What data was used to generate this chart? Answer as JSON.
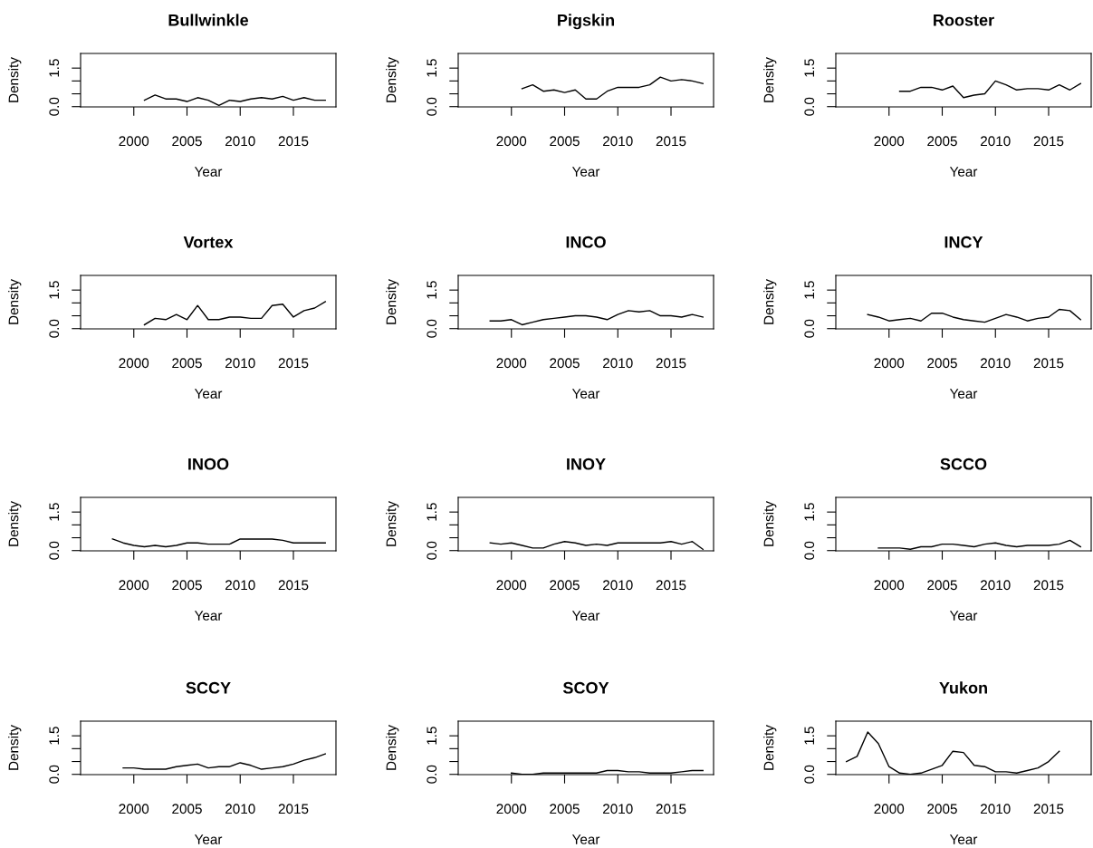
{
  "chart_data": [
    {
      "type": "line",
      "title": "Bullwinkle",
      "xlabel": "Year",
      "ylabel": "Density",
      "color": "#000000",
      "xlim": [
        1995,
        2019
      ],
      "ylim": [
        -0.01,
        2.07
      ],
      "xticks": [
        2000,
        2005,
        2010,
        2015
      ],
      "yticks": [
        {
          "value": 0,
          "label": "0.0"
        },
        {
          "value": 0.5,
          "label": null
        },
        {
          "value": 1,
          "label": null
        },
        {
          "value": 1.5,
          "label": "1.5"
        }
      ],
      "x": [
        2001,
        2002,
        2003,
        2004,
        2005,
        2006,
        2007,
        2008,
        2009,
        2010,
        2011,
        2012,
        2013,
        2014,
        2015,
        2016,
        2017,
        2018
      ],
      "values": [
        0.25,
        0.45,
        0.3,
        0.3,
        0.2,
        0.35,
        0.25,
        0.05,
        0.25,
        0.2,
        0.3,
        0.35,
        0.3,
        0.4,
        0.25,
        0.35,
        0.25,
        0.25
      ]
    },
    {
      "type": "line",
      "title": "Pigskin",
      "xlabel": "Year",
      "ylabel": "Density",
      "color": "#000000",
      "xlim": [
        1995,
        2019
      ],
      "ylim": [
        -0.01,
        2.07
      ],
      "xticks": [
        2000,
        2005,
        2010,
        2015
      ],
      "yticks": [
        {
          "value": 0,
          "label": "0.0"
        },
        {
          "value": 0.5,
          "label": null
        },
        {
          "value": 1,
          "label": null
        },
        {
          "value": 1.5,
          "label": "1.5"
        }
      ],
      "x": [
        2001,
        2002,
        2003,
        2004,
        2005,
        2006,
        2007,
        2008,
        2009,
        2010,
        2011,
        2012,
        2013,
        2014,
        2015,
        2016,
        2017,
        2018
      ],
      "values": [
        0.7,
        0.85,
        0.6,
        0.65,
        0.55,
        0.65,
        0.3,
        0.3,
        0.6,
        0.75,
        0.75,
        0.75,
        0.85,
        1.15,
        1.0,
        1.05,
        1.0,
        0.9
      ]
    },
    {
      "type": "line",
      "title": "Rooster",
      "xlabel": "Year",
      "ylabel": "Density",
      "color": "#000000",
      "xlim": [
        1995,
        2019
      ],
      "ylim": [
        -0.01,
        2.07
      ],
      "xticks": [
        2000,
        2005,
        2010,
        2015
      ],
      "yticks": [
        {
          "value": 0,
          "label": "0.0"
        },
        {
          "value": 0.5,
          "label": null
        },
        {
          "value": 1,
          "label": null
        },
        {
          "value": 1.5,
          "label": "1.5"
        }
      ],
      "x": [
        2001,
        2002,
        2003,
        2004,
        2005,
        2006,
        2007,
        2008,
        2009,
        2010,
        2011,
        2012,
        2013,
        2014,
        2015,
        2016,
        2017,
        2018
      ],
      "values": [
        0.6,
        0.6,
        0.75,
        0.75,
        0.65,
        0.8,
        0.35,
        0.45,
        0.5,
        1.0,
        0.85,
        0.65,
        0.7,
        0.7,
        0.65,
        0.85,
        0.65,
        0.9
      ]
    },
    {
      "type": "line",
      "title": "Vortex",
      "xlabel": "Year",
      "ylabel": "Density",
      "color": "#000000",
      "xlim": [
        1995,
        2019
      ],
      "ylim": [
        -0.01,
        2.07
      ],
      "xticks": [
        2000,
        2005,
        2010,
        2015
      ],
      "yticks": [
        {
          "value": 0,
          "label": "0.0"
        },
        {
          "value": 0.5,
          "label": null
        },
        {
          "value": 1,
          "label": null
        },
        {
          "value": 1.5,
          "label": "1.5"
        }
      ],
      "x": [
        2001,
        2002,
        2003,
        2004,
        2005,
        2006,
        2007,
        2008,
        2009,
        2010,
        2011,
        2012,
        2013,
        2014,
        2015,
        2016,
        2017,
        2018
      ],
      "values": [
        0.15,
        0.4,
        0.35,
        0.55,
        0.35,
        0.9,
        0.35,
        0.35,
        0.45,
        0.45,
        0.4,
        0.4,
        0.9,
        0.95,
        0.45,
        0.7,
        0.8,
        1.05
      ]
    },
    {
      "type": "line",
      "title": "INCO",
      "xlabel": "Year",
      "ylabel": "Density",
      "color": "#000000",
      "xlim": [
        1995,
        2019
      ],
      "ylim": [
        -0.01,
        2.07
      ],
      "xticks": [
        2000,
        2005,
        2010,
        2015
      ],
      "yticks": [
        {
          "value": 0,
          "label": "0.0"
        },
        {
          "value": 0.5,
          "label": null
        },
        {
          "value": 1,
          "label": null
        },
        {
          "value": 1.5,
          "label": "1.5"
        }
      ],
      "x": [
        1998,
        1999,
        2000,
        2001,
        2002,
        2003,
        2004,
        2005,
        2006,
        2007,
        2008,
        2009,
        2010,
        2011,
        2012,
        2013,
        2014,
        2015,
        2016,
        2017,
        2018
      ],
      "values": [
        0.3,
        0.3,
        0.35,
        0.15,
        0.25,
        0.35,
        0.4,
        0.45,
        0.5,
        0.5,
        0.45,
        0.35,
        0.55,
        0.7,
        0.65,
        0.7,
        0.5,
        0.5,
        0.45,
        0.55,
        0.45
      ]
    },
    {
      "type": "line",
      "title": "INCY",
      "xlabel": "Year",
      "ylabel": "Density",
      "color": "#000000",
      "xlim": [
        1995,
        2019
      ],
      "ylim": [
        -0.01,
        2.07
      ],
      "xticks": [
        2000,
        2005,
        2010,
        2015
      ],
      "yticks": [
        {
          "value": 0,
          "label": "0.0"
        },
        {
          "value": 0.5,
          "label": null
        },
        {
          "value": 1,
          "label": null
        },
        {
          "value": 1.5,
          "label": "1.5"
        }
      ],
      "x": [
        1998,
        1999,
        2000,
        2001,
        2002,
        2003,
        2004,
        2005,
        2006,
        2007,
        2008,
        2009,
        2010,
        2011,
        2012,
        2013,
        2014,
        2015,
        2016,
        2017,
        2018
      ],
      "values": [
        0.55,
        0.45,
        0.3,
        0.35,
        0.4,
        0.3,
        0.6,
        0.6,
        0.45,
        0.35,
        0.3,
        0.25,
        0.4,
        0.55,
        0.45,
        0.3,
        0.4,
        0.45,
        0.75,
        0.7,
        0.35
      ]
    },
    {
      "type": "line",
      "title": "INOO",
      "xlabel": "Year",
      "ylabel": "Density",
      "color": "#000000",
      "xlim": [
        1995,
        2019
      ],
      "ylim": [
        -0.01,
        2.07
      ],
      "xticks": [
        2000,
        2005,
        2010,
        2015
      ],
      "yticks": [
        {
          "value": 0,
          "label": "0.0"
        },
        {
          "value": 0.5,
          "label": null
        },
        {
          "value": 1,
          "label": null
        },
        {
          "value": 1.5,
          "label": "1.5"
        }
      ],
      "x": [
        1998,
        1999,
        2000,
        2001,
        2002,
        2003,
        2004,
        2005,
        2006,
        2007,
        2008,
        2009,
        2010,
        2011,
        2012,
        2013,
        2014,
        2015,
        2016,
        2017,
        2018
      ],
      "values": [
        0.45,
        0.3,
        0.2,
        0.15,
        0.2,
        0.15,
        0.2,
        0.3,
        0.3,
        0.25,
        0.25,
        0.25,
        0.45,
        0.45,
        0.45,
        0.45,
        0.4,
        0.3,
        0.3,
        0.3,
        0.3
      ]
    },
    {
      "type": "line",
      "title": "INOY",
      "xlabel": "Year",
      "ylabel": "Density",
      "color": "#000000",
      "xlim": [
        1995,
        2019
      ],
      "ylim": [
        -0.01,
        2.07
      ],
      "xticks": [
        2000,
        2005,
        2010,
        2015
      ],
      "yticks": [
        {
          "value": 0,
          "label": "0.0"
        },
        {
          "value": 0.5,
          "label": null
        },
        {
          "value": 1,
          "label": null
        },
        {
          "value": 1.5,
          "label": "1.5"
        }
      ],
      "x": [
        1998,
        1999,
        2000,
        2001,
        2002,
        2003,
        2004,
        2005,
        2006,
        2007,
        2008,
        2009,
        2010,
        2011,
        2012,
        2013,
        2014,
        2015,
        2016,
        2017,
        2018
      ],
      "values": [
        0.3,
        0.25,
        0.3,
        0.2,
        0.1,
        0.1,
        0.25,
        0.35,
        0.3,
        0.2,
        0.25,
        0.2,
        0.3,
        0.3,
        0.3,
        0.3,
        0.3,
        0.35,
        0.25,
        0.35,
        0.05
      ]
    },
    {
      "type": "line",
      "title": "SCCO",
      "xlabel": "Year",
      "ylabel": "Density",
      "color": "#000000",
      "xlim": [
        1995,
        2019
      ],
      "ylim": [
        -0.01,
        2.07
      ],
      "xticks": [
        2000,
        2005,
        2010,
        2015
      ],
      "yticks": [
        {
          "value": 0,
          "label": "0.0"
        },
        {
          "value": 0.5,
          "label": null
        },
        {
          "value": 1,
          "label": null
        },
        {
          "value": 1.5,
          "label": "1.5"
        }
      ],
      "x": [
        1999,
        2000,
        2001,
        2002,
        2003,
        2004,
        2005,
        2006,
        2007,
        2008,
        2009,
        2010,
        2011,
        2012,
        2013,
        2014,
        2015,
        2016,
        2017,
        2018
      ],
      "values": [
        0.1,
        0.1,
        0.1,
        0.05,
        0.15,
        0.15,
        0.25,
        0.25,
        0.2,
        0.15,
        0.25,
        0.3,
        0.2,
        0.15,
        0.2,
        0.2,
        0.2,
        0.25,
        0.4,
        0.15
      ]
    },
    {
      "type": "line",
      "title": "SCCY",
      "xlabel": "Year",
      "ylabel": "Density",
      "color": "#000000",
      "xlim": [
        1995,
        2019
      ],
      "ylim": [
        -0.01,
        2.07
      ],
      "xticks": [
        2000,
        2005,
        2010,
        2015
      ],
      "yticks": [
        {
          "value": 0,
          "label": "0.0"
        },
        {
          "value": 0.5,
          "label": null
        },
        {
          "value": 1,
          "label": null
        },
        {
          "value": 1.5,
          "label": "1.5"
        }
      ],
      "x": [
        1999,
        2000,
        2001,
        2002,
        2003,
        2004,
        2005,
        2006,
        2007,
        2008,
        2009,
        2010,
        2011,
        2012,
        2013,
        2014,
        2015,
        2016,
        2017,
        2018
      ],
      "values": [
        0.25,
        0.25,
        0.2,
        0.2,
        0.2,
        0.3,
        0.35,
        0.4,
        0.25,
        0.3,
        0.3,
        0.45,
        0.35,
        0.2,
        0.25,
        0.3,
        0.4,
        0.55,
        0.65,
        0.8
      ]
    },
    {
      "type": "line",
      "title": "SCOY",
      "xlabel": "Year",
      "ylabel": "Density",
      "color": "#000000",
      "xlim": [
        1995,
        2019
      ],
      "ylim": [
        -0.01,
        2.07
      ],
      "xticks": [
        2000,
        2005,
        2010,
        2015
      ],
      "yticks": [
        {
          "value": 0,
          "label": "0.0"
        },
        {
          "value": 0.5,
          "label": null
        },
        {
          "value": 1,
          "label": null
        },
        {
          "value": 1.5,
          "label": "1.5"
        }
      ],
      "x": [
        2000,
        2001,
        2002,
        2003,
        2004,
        2005,
        2006,
        2007,
        2008,
        2009,
        2010,
        2011,
        2012,
        2013,
        2014,
        2015,
        2016,
        2017,
        2018
      ],
      "values": [
        0.05,
        0.0,
        0.0,
        0.05,
        0.05,
        0.05,
        0.05,
        0.05,
        0.05,
        0.15,
        0.15,
        0.1,
        0.1,
        0.05,
        0.05,
        0.05,
        0.1,
        0.15,
        0.15
      ]
    },
    {
      "type": "line",
      "title": "Yukon",
      "xlabel": "Year",
      "ylabel": "Density",
      "color": "#000000",
      "xlim": [
        1995,
        2019
      ],
      "ylim": [
        -0.01,
        2.07
      ],
      "xticks": [
        2000,
        2005,
        2010,
        2015
      ],
      "yticks": [
        {
          "value": 0,
          "label": "0.0"
        },
        {
          "value": 0.5,
          "label": null
        },
        {
          "value": 1,
          "label": null
        },
        {
          "value": 1.5,
          "label": "1.5"
        }
      ],
      "x": [
        1996,
        1997,
        1998,
        1999,
        2000,
        2001,
        2002,
        2003,
        2004,
        2005,
        2006,
        2007,
        2008,
        2009,
        2010,
        2011,
        2012,
        2013,
        2014,
        2015,
        2016
      ],
      "values": [
        0.5,
        0.7,
        1.65,
        1.2,
        0.3,
        0.05,
        0.0,
        0.05,
        0.2,
        0.35,
        0.9,
        0.85,
        0.35,
        0.3,
        0.1,
        0.1,
        0.05,
        0.15,
        0.25,
        0.5,
        0.9
      ]
    }
  ]
}
